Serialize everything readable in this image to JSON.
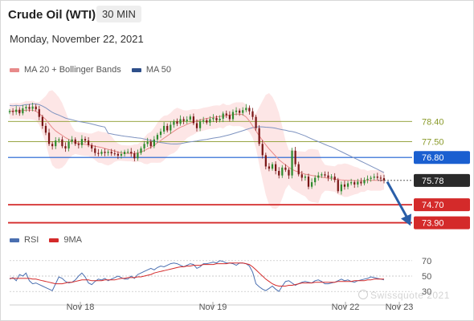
{
  "header": {
    "title": "Crude Oil (WTI)",
    "timeframe": "30 MIN",
    "date": "Monday, November 22, 2021"
  },
  "legend_main": [
    {
      "label": "MA 20 + Bollinger Bands",
      "color": "#e88a8a"
    },
    {
      "label": "MA 50",
      "color": "#2e4f8a"
    }
  ],
  "legend_rsi": [
    {
      "label": "RSI",
      "color": "#4a6fb0"
    },
    {
      "label": "9MA",
      "color": "#d42a2a"
    }
  ],
  "watermark": "Swissquote 2021",
  "colors": {
    "up": "#2e8b2e",
    "down": "#7a1616",
    "ma20": "#e88a8a",
    "band": "#fde2e2",
    "ma50": "#7e93c0",
    "rsi": "#4a6fb0",
    "rsi_ma": "#d42a2a",
    "level_green": "#8a9a2a",
    "level_blue": "#1a5fd0",
    "level_red": "#d42a2a"
  },
  "chart_data": {
    "type": "candlestick",
    "instrument": "Crude Oil (WTI)",
    "timeframe": "30 MIN",
    "x_labels": [
      "Nov 18",
      "Nov 19",
      "Nov 22",
      "Nov 23"
    ],
    "price_range": [
      73.6,
      79.8
    ],
    "current_price": 75.78,
    "levels": [
      {
        "value": 78.4,
        "label": "78.40",
        "kind": "resistance"
      },
      {
        "value": 77.5,
        "label": "77.50",
        "kind": "resistance"
      },
      {
        "value": 76.8,
        "label": "76.80",
        "kind": "pivot"
      },
      {
        "value": 74.7,
        "label": "74.70",
        "kind": "support"
      },
      {
        "value": 73.9,
        "label": "73.90",
        "kind": "support"
      }
    ],
    "rsi_levels": [
      70,
      50,
      30
    ],
    "close": [
      78.86,
      78.82,
      78.92,
      78.76,
      78.98,
      79.04,
      78.96,
      79.06,
      78.94,
      78.6,
      78.2,
      77.9,
      77.4,
      77.3,
      77.55,
      77.6,
      77.3,
      77.2,
      77.5,
      77.6,
      77.4,
      77.35,
      77.62,
      77.55,
      77.35,
      77.2,
      77.0,
      76.96,
      77.05,
      77.0,
      77.05,
      76.98,
      76.96,
      76.88,
      76.95,
      77.05,
      77.05,
      76.98,
      76.76,
      77.0,
      77.2,
      77.4,
      77.5,
      77.3,
      77.6,
      77.8,
      77.95,
      78.2,
      78.0,
      78.25,
      78.4,
      78.3,
      78.5,
      78.42,
      78.48,
      78.62,
      78.32,
      78.1,
      78.4,
      78.45,
      78.35,
      78.5,
      78.55,
      78.45,
      78.52,
      78.75,
      78.68,
      78.5,
      78.82,
      78.88,
      78.78,
      78.9,
      79.0,
      78.85,
      78.6,
      78.1,
      77.4,
      76.9,
      76.4,
      76.3,
      76.5,
      76.2,
      76.0,
      76.35,
      76.25,
      76.0,
      77.1,
      76.5,
      76.05,
      75.9,
      75.95,
      75.5,
      75.7,
      75.9,
      76.0,
      76.05,
      76.0,
      75.9,
      75.95,
      75.8,
      75.3,
      75.6,
      75.5,
      75.65,
      75.7,
      75.6,
      75.72,
      75.65,
      75.8,
      75.85,
      75.9,
      75.95,
      75.9,
      75.88,
      75.78
    ],
    "ma20": [
      78.85,
      78.86,
      78.87,
      78.86,
      78.88,
      78.9,
      78.9,
      78.9,
      78.85,
      78.75,
      78.62,
      78.48,
      78.3,
      78.12,
      77.98,
      77.88,
      77.78,
      77.68,
      77.6,
      77.52,
      77.46,
      77.42,
      77.4,
      77.38,
      77.36,
      77.33,
      77.3,
      77.27,
      77.24,
      77.2,
      77.16,
      77.12,
      77.08,
      77.04,
      77.0,
      76.99,
      76.98,
      76.98,
      76.98,
      77.0,
      77.05,
      77.1,
      77.18,
      77.25,
      77.34,
      77.45,
      77.55,
      77.66,
      77.76,
      77.86,
      77.96,
      78.06,
      78.14,
      78.2,
      78.27,
      78.33,
      78.38,
      78.42,
      78.46,
      78.5,
      78.53,
      78.56,
      78.58,
      78.6,
      78.62,
      78.64,
      78.66,
      78.68,
      78.7,
      78.72,
      78.72,
      78.7,
      78.6,
      78.42,
      78.2,
      77.98,
      77.76,
      77.55,
      77.36,
      77.18,
      77.02,
      76.86,
      76.7,
      76.58,
      76.47,
      76.36,
      76.27,
      76.2,
      76.15,
      76.1,
      76.06,
      76.03,
      76.0,
      75.98,
      75.95,
      75.93,
      75.9,
      75.88,
      75.86,
      75.84,
      75.82,
      75.8,
      75.79,
      75.78,
      75.78,
      75.77,
      75.77,
      75.77,
      75.77,
      75.78,
      75.78,
      75.78,
      75.78,
      75.78,
      75.78
    ],
    "rsi": [
      46,
      48,
      44,
      52,
      50,
      54,
      44,
      40,
      41,
      39,
      37,
      35,
      33,
      31,
      40,
      49,
      47,
      43,
      41,
      42,
      45,
      50,
      54,
      49,
      41,
      39,
      43,
      46,
      45,
      47,
      44,
      46,
      48,
      50,
      48,
      46,
      46,
      50,
      47,
      52,
      54,
      56,
      58,
      60,
      58,
      61,
      63,
      62,
      64,
      66,
      67,
      66,
      64,
      62,
      64,
      66,
      65,
      60,
      62,
      66,
      66,
      67,
      68,
      67,
      70,
      69,
      67,
      67,
      66,
      64,
      67,
      67,
      66,
      63,
      55,
      40,
      36,
      33,
      31,
      34,
      37,
      33,
      30,
      37,
      43,
      44,
      41,
      38,
      40,
      42,
      43,
      42,
      41,
      44,
      45,
      43,
      40,
      40,
      41,
      42,
      44,
      46,
      44,
      45,
      43,
      42,
      44,
      45,
      46,
      47,
      49,
      48,
      47,
      46,
      45
    ],
    "rsi_ma": [
      47,
      47,
      47,
      47,
      47,
      47,
      47,
      46,
      46,
      45,
      44,
      43,
      42,
      41,
      40,
      40,
      40,
      41,
      42,
      42,
      43,
      44,
      45,
      45,
      45,
      44,
      44,
      44,
      44,
      45,
      45,
      45,
      45,
      46,
      47,
      47,
      48,
      48,
      48,
      49,
      49,
      50,
      51,
      52,
      54,
      55,
      56,
      57,
      58,
      59,
      60,
      61,
      62,
      62,
      63,
      63,
      64,
      64,
      64,
      65,
      65,
      65,
      65,
      66,
      66,
      66,
      66,
      67,
      67,
      67,
      67,
      67,
      66,
      65,
      62,
      58,
      54,
      50,
      46,
      43,
      40,
      38,
      37,
      37,
      37,
      38,
      38,
      39,
      40,
      41,
      41,
      41,
      41,
      42,
      42,
      42,
      42,
      42,
      42,
      42,
      43,
      43,
      43,
      43,
      43,
      44,
      44,
      44,
      44,
      45,
      45,
      46,
      46,
      46,
      46
    ]
  }
}
